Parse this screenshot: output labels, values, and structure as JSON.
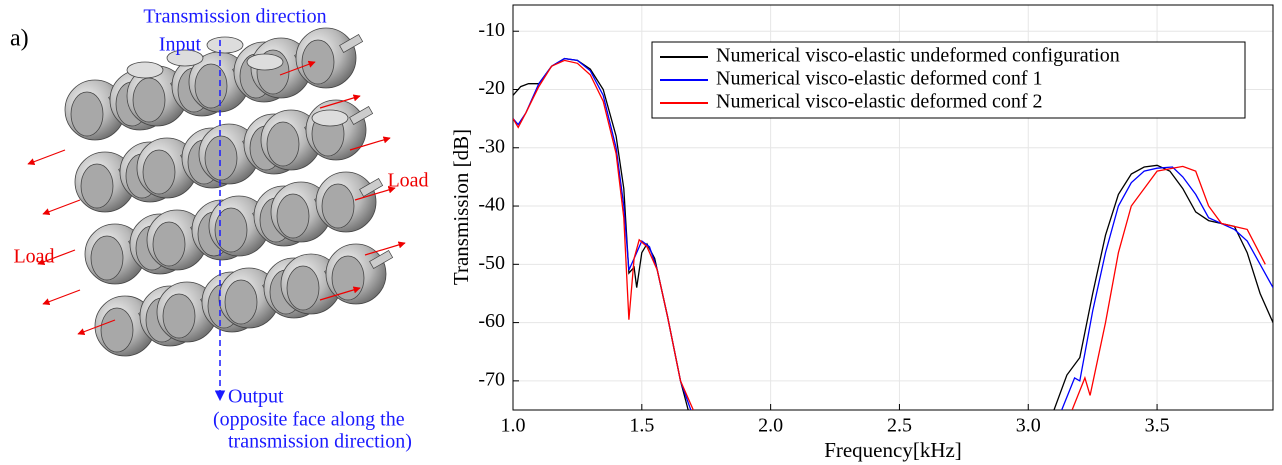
{
  "illustration": {
    "panel_label": "a)",
    "direction_label": "Transmission direction",
    "input_label": "Input",
    "load_labels": [
      "Load",
      "Load"
    ],
    "output_label": "Output",
    "output_note": [
      "(opposite face along the",
      "transmission direction)"
    ]
  },
  "chart_data": {
    "type": "line",
    "x_label": "Frequency[kHz]",
    "y_label": "Transmission [dB]",
    "xlim": [
      1.0,
      3.95
    ],
    "ylim": [
      -75,
      -5.5
    ],
    "xticks": [
      {
        "value": 1,
        "label": "1.0"
      },
      1.5,
      {
        "value": 2,
        "label": "2.0"
      },
      2.5,
      {
        "value": 3,
        "label": "3.0"
      },
      3.5
    ],
    "yticks": [
      -10,
      -20,
      -30,
      -40,
      -50,
      -60,
      -70
    ],
    "grid": true,
    "legend": "upper right",
    "series": [
      {
        "name": "Numerical visco-elastic undeformed configuration",
        "color": "#000000",
        "x": [
          1.0,
          1.03,
          1.06,
          1.1,
          1.15,
          1.2,
          1.25,
          1.3,
          1.35,
          1.4,
          1.43,
          1.45,
          1.47,
          1.48,
          1.5,
          1.52,
          1.55,
          1.6,
          1.65,
          1.68,
          2.5,
          3.1,
          3.15,
          3.2,
          3.25,
          3.3,
          3.35,
          3.4,
          3.45,
          3.5,
          3.55,
          3.6,
          3.65,
          3.7,
          3.8,
          3.85,
          3.9,
          3.95
        ],
        "values": [
          -21,
          -19.5,
          -19,
          -19,
          -16,
          -14.7,
          -15,
          -16.5,
          -20,
          -28,
          -37,
          -51.5,
          -50.5,
          -54,
          -48,
          -46.5,
          -49,
          -59,
          -70,
          -75,
          null,
          -75,
          -69,
          -66,
          -55,
          -45,
          -38,
          -34.5,
          -33.3,
          -33,
          -34,
          -37,
          -41,
          -42.5,
          -43.5,
          -48,
          -55,
          -60
        ]
      },
      {
        "name": "Numerical visco-elastic deformed conf 1",
        "color": "#0000ff",
        "x": [
          1.0,
          1.02,
          1.05,
          1.1,
          1.15,
          1.2,
          1.25,
          1.3,
          1.35,
          1.4,
          1.43,
          1.45,
          1.47,
          1.5,
          1.53,
          1.56,
          1.6,
          1.65,
          1.69,
          2.5,
          3.13,
          3.18,
          3.2,
          3.25,
          3.3,
          3.35,
          3.4,
          3.45,
          3.5,
          3.56,
          3.6,
          3.65,
          3.7,
          3.8,
          3.85,
          3.9,
          3.95
        ],
        "values": [
          -25,
          -26,
          -24,
          -19,
          -16,
          -14.7,
          -15,
          -16.8,
          -21,
          -30,
          -40,
          -51,
          -49,
          -46,
          -47,
          -51,
          -59,
          -70,
          -75,
          null,
          -75,
          -69.5,
          -70,
          -58,
          -48,
          -40,
          -36,
          -34,
          -33.5,
          -33.3,
          -35,
          -38,
          -42,
          -44,
          -46,
          -50,
          -54
        ]
      },
      {
        "name": "Numerical visco-elastic deformed conf 2",
        "color": "#ff0000",
        "x": [
          1.0,
          1.02,
          1.05,
          1.1,
          1.15,
          1.2,
          1.25,
          1.3,
          1.35,
          1.4,
          1.43,
          1.45,
          1.47,
          1.49,
          1.52,
          1.56,
          1.6,
          1.65,
          1.7,
          2.5,
          3.17,
          3.22,
          3.24,
          3.3,
          3.35,
          3.4,
          3.5,
          3.6,
          3.65,
          3.7,
          3.75,
          3.85,
          3.92
        ],
        "values": [
          -25,
          -26.5,
          -24,
          -19.5,
          -16,
          -15,
          -15.5,
          -17.5,
          -22,
          -31,
          -42,
          -59.5,
          -49,
          -45.8,
          -47,
          -51,
          -59,
          -70,
          -75,
          null,
          -75,
          -69.5,
          -72.5,
          -60,
          -48,
          -40,
          -34,
          -33.2,
          -34,
          -40,
          -43,
          -44,
          -50
        ]
      }
    ]
  }
}
